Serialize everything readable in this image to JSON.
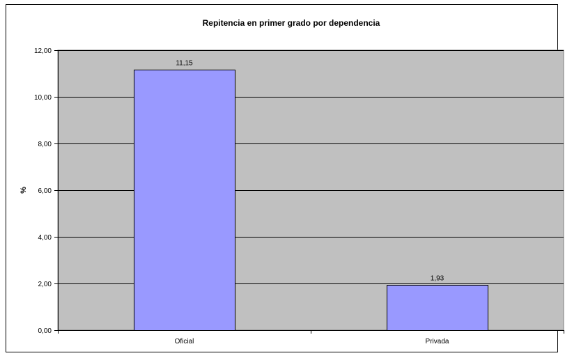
{
  "chart_data": {
    "type": "bar",
    "title": "Repitencia en primer grado por dependencia",
    "xlabel": "",
    "ylabel": "%",
    "categories": [
      "Oficial",
      "Privada"
    ],
    "values": [
      11.15,
      1.93
    ],
    "value_labels": [
      "11,15",
      "1,93"
    ],
    "ylim": [
      0,
      12
    ],
    "yticks": [
      0,
      2,
      4,
      6,
      8,
      10,
      12
    ],
    "ytick_labels": [
      "0,00",
      "2,00",
      "4,00",
      "6,00",
      "8,00",
      "10,00",
      "12,00"
    ],
    "grid": true,
    "legend": "none",
    "colors": {
      "plot_background": "#c0c0c0",
      "bar_fill": "#9999ff",
      "bar_stroke": "#000000",
      "gridline": "#000000"
    }
  }
}
